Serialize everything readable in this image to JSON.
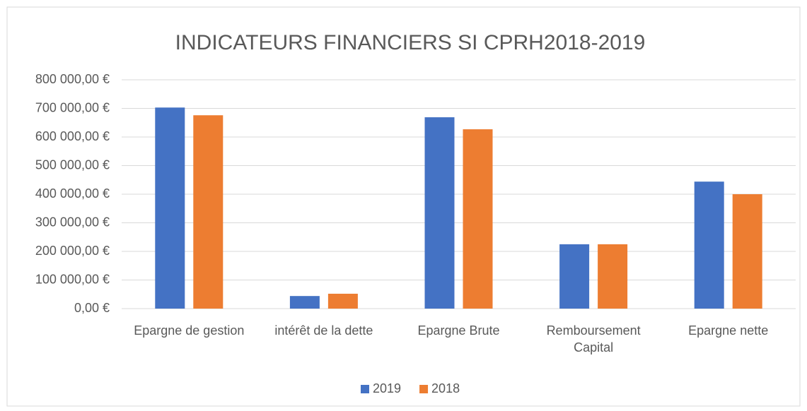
{
  "chart_data": {
    "type": "bar",
    "title": "INDICATEURS FINANCIERS SI CPRH2018-2019",
    "categories": [
      "Epargne de gestion",
      "intérêt de la dette",
      "Epargne Brute",
      "Remboursement Capital",
      "Epargne nette"
    ],
    "series": [
      {
        "name": "2019",
        "color": "#4472c4",
        "values": [
          703000,
          44000,
          669000,
          225000,
          444000
        ]
      },
      {
        "name": "2018",
        "color": "#ed7d31",
        "values": [
          676000,
          52000,
          627000,
          225000,
          400000
        ]
      }
    ],
    "ylim": [
      0,
      800000
    ],
    "yticks": [
      {
        "value": 0,
        "label": "0,00 €"
      },
      {
        "value": 100000,
        "label": "100 000,00 €"
      },
      {
        "value": 200000,
        "label": "200 000,00 €"
      },
      {
        "value": 300000,
        "label": "300 000,00 €"
      },
      {
        "value": 400000,
        "label": "400 000,00 €"
      },
      {
        "value": 500000,
        "label": "500 000,00 €"
      },
      {
        "value": 600000,
        "label": "600 000,00 €"
      },
      {
        "value": 700000,
        "label": "700 000,00 €"
      },
      {
        "value": 800000,
        "label": "800 000,00 €"
      }
    ],
    "grid": true,
    "legend": "bottom"
  }
}
